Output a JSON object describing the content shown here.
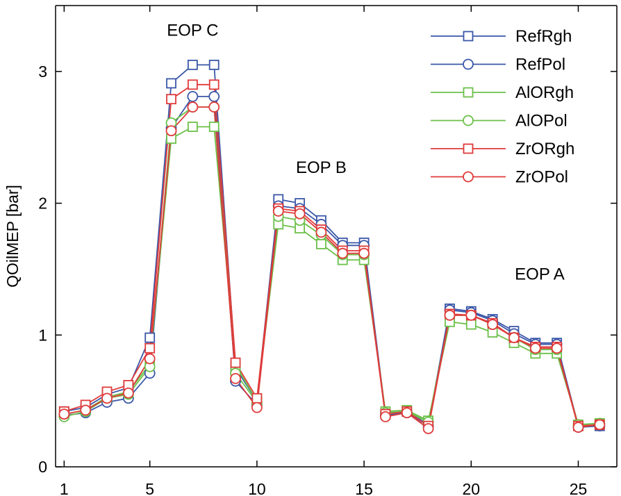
{
  "chart_data": {
    "type": "line",
    "title": "",
    "xlabel": "",
    "ylabel": "QOilMEP [bar]",
    "xlim": [
      0.6,
      26.8
    ],
    "ylim": [
      0,
      3.5
    ],
    "xticks": [
      1,
      5,
      10,
      15,
      20,
      25
    ],
    "yticks": [
      0,
      1,
      2,
      3
    ],
    "grid": false,
    "legend_position": "top-right",
    "x": [
      1,
      2,
      3,
      4,
      5,
      6,
      7,
      8,
      9,
      10,
      11,
      12,
      13,
      14,
      15,
      16,
      17,
      18,
      19,
      20,
      21,
      22,
      23,
      24,
      25,
      26
    ],
    "annotations": [
      {
        "text": "EOP C",
        "x": 7.0,
        "y": 3.27
      },
      {
        "text": "EOP B",
        "x": 13.0,
        "y": 2.23
      },
      {
        "text": "EOP A",
        "x": 23.2,
        "y": 1.42
      }
    ],
    "series": [
      {
        "name": "RefRgh",
        "color": "#3a57a8",
        "marker": "square",
        "values": [
          0.42,
          0.45,
          0.55,
          0.6,
          0.98,
          2.91,
          3.05,
          3.05,
          0.75,
          0.5,
          2.03,
          2.0,
          1.87,
          1.7,
          1.7,
          0.4,
          0.42,
          0.32,
          1.2,
          1.18,
          1.12,
          1.03,
          0.94,
          0.94,
          0.31,
          0.31
        ]
      },
      {
        "name": "RefPol",
        "color": "#3a57a8",
        "marker": "circle",
        "values": [
          0.39,
          0.41,
          0.49,
          0.52,
          0.71,
          2.57,
          2.81,
          2.81,
          0.65,
          0.47,
          1.98,
          1.96,
          1.84,
          1.68,
          1.68,
          0.39,
          0.41,
          0.31,
          1.19,
          1.17,
          1.11,
          1.01,
          0.93,
          0.93,
          0.3,
          0.31
        ]
      },
      {
        "name": "AlORgh",
        "color": "#6cc04a",
        "marker": "square",
        "values": [
          0.4,
          0.43,
          0.53,
          0.57,
          0.78,
          2.49,
          2.58,
          2.58,
          0.77,
          0.5,
          1.84,
          1.81,
          1.69,
          1.57,
          1.57,
          0.42,
          0.43,
          0.35,
          1.1,
          1.08,
          1.02,
          0.94,
          0.86,
          0.86,
          0.32,
          0.33
        ]
      },
      {
        "name": "AlOPol",
        "color": "#6cc04a",
        "marker": "circle",
        "values": [
          0.38,
          0.42,
          0.52,
          0.55,
          0.76,
          2.61,
          2.73,
          2.73,
          0.71,
          0.49,
          1.9,
          1.87,
          1.76,
          1.61,
          1.61,
          0.41,
          0.42,
          0.34,
          1.15,
          1.15,
          1.08,
          0.98,
          0.89,
          0.89,
          0.32,
          0.33
        ]
      },
      {
        "name": "ZrORgh",
        "color": "#e03a3a",
        "marker": "square",
        "values": [
          0.42,
          0.47,
          0.57,
          0.62,
          0.9,
          2.79,
          2.9,
          2.9,
          0.79,
          0.52,
          1.96,
          1.94,
          1.8,
          1.64,
          1.64,
          0.4,
          0.42,
          0.31,
          1.16,
          1.15,
          1.09,
          0.98,
          0.91,
          0.91,
          0.31,
          0.32
        ]
      },
      {
        "name": "ZrOPol",
        "color": "#e03a3a",
        "marker": "circle",
        "values": [
          0.4,
          0.43,
          0.52,
          0.56,
          0.82,
          2.55,
          2.73,
          2.73,
          0.67,
          0.45,
          1.94,
          1.92,
          1.78,
          1.62,
          1.62,
          0.38,
          0.41,
          0.29,
          1.15,
          1.15,
          1.08,
          0.98,
          0.9,
          0.9,
          0.3,
          0.32
        ]
      }
    ]
  }
}
